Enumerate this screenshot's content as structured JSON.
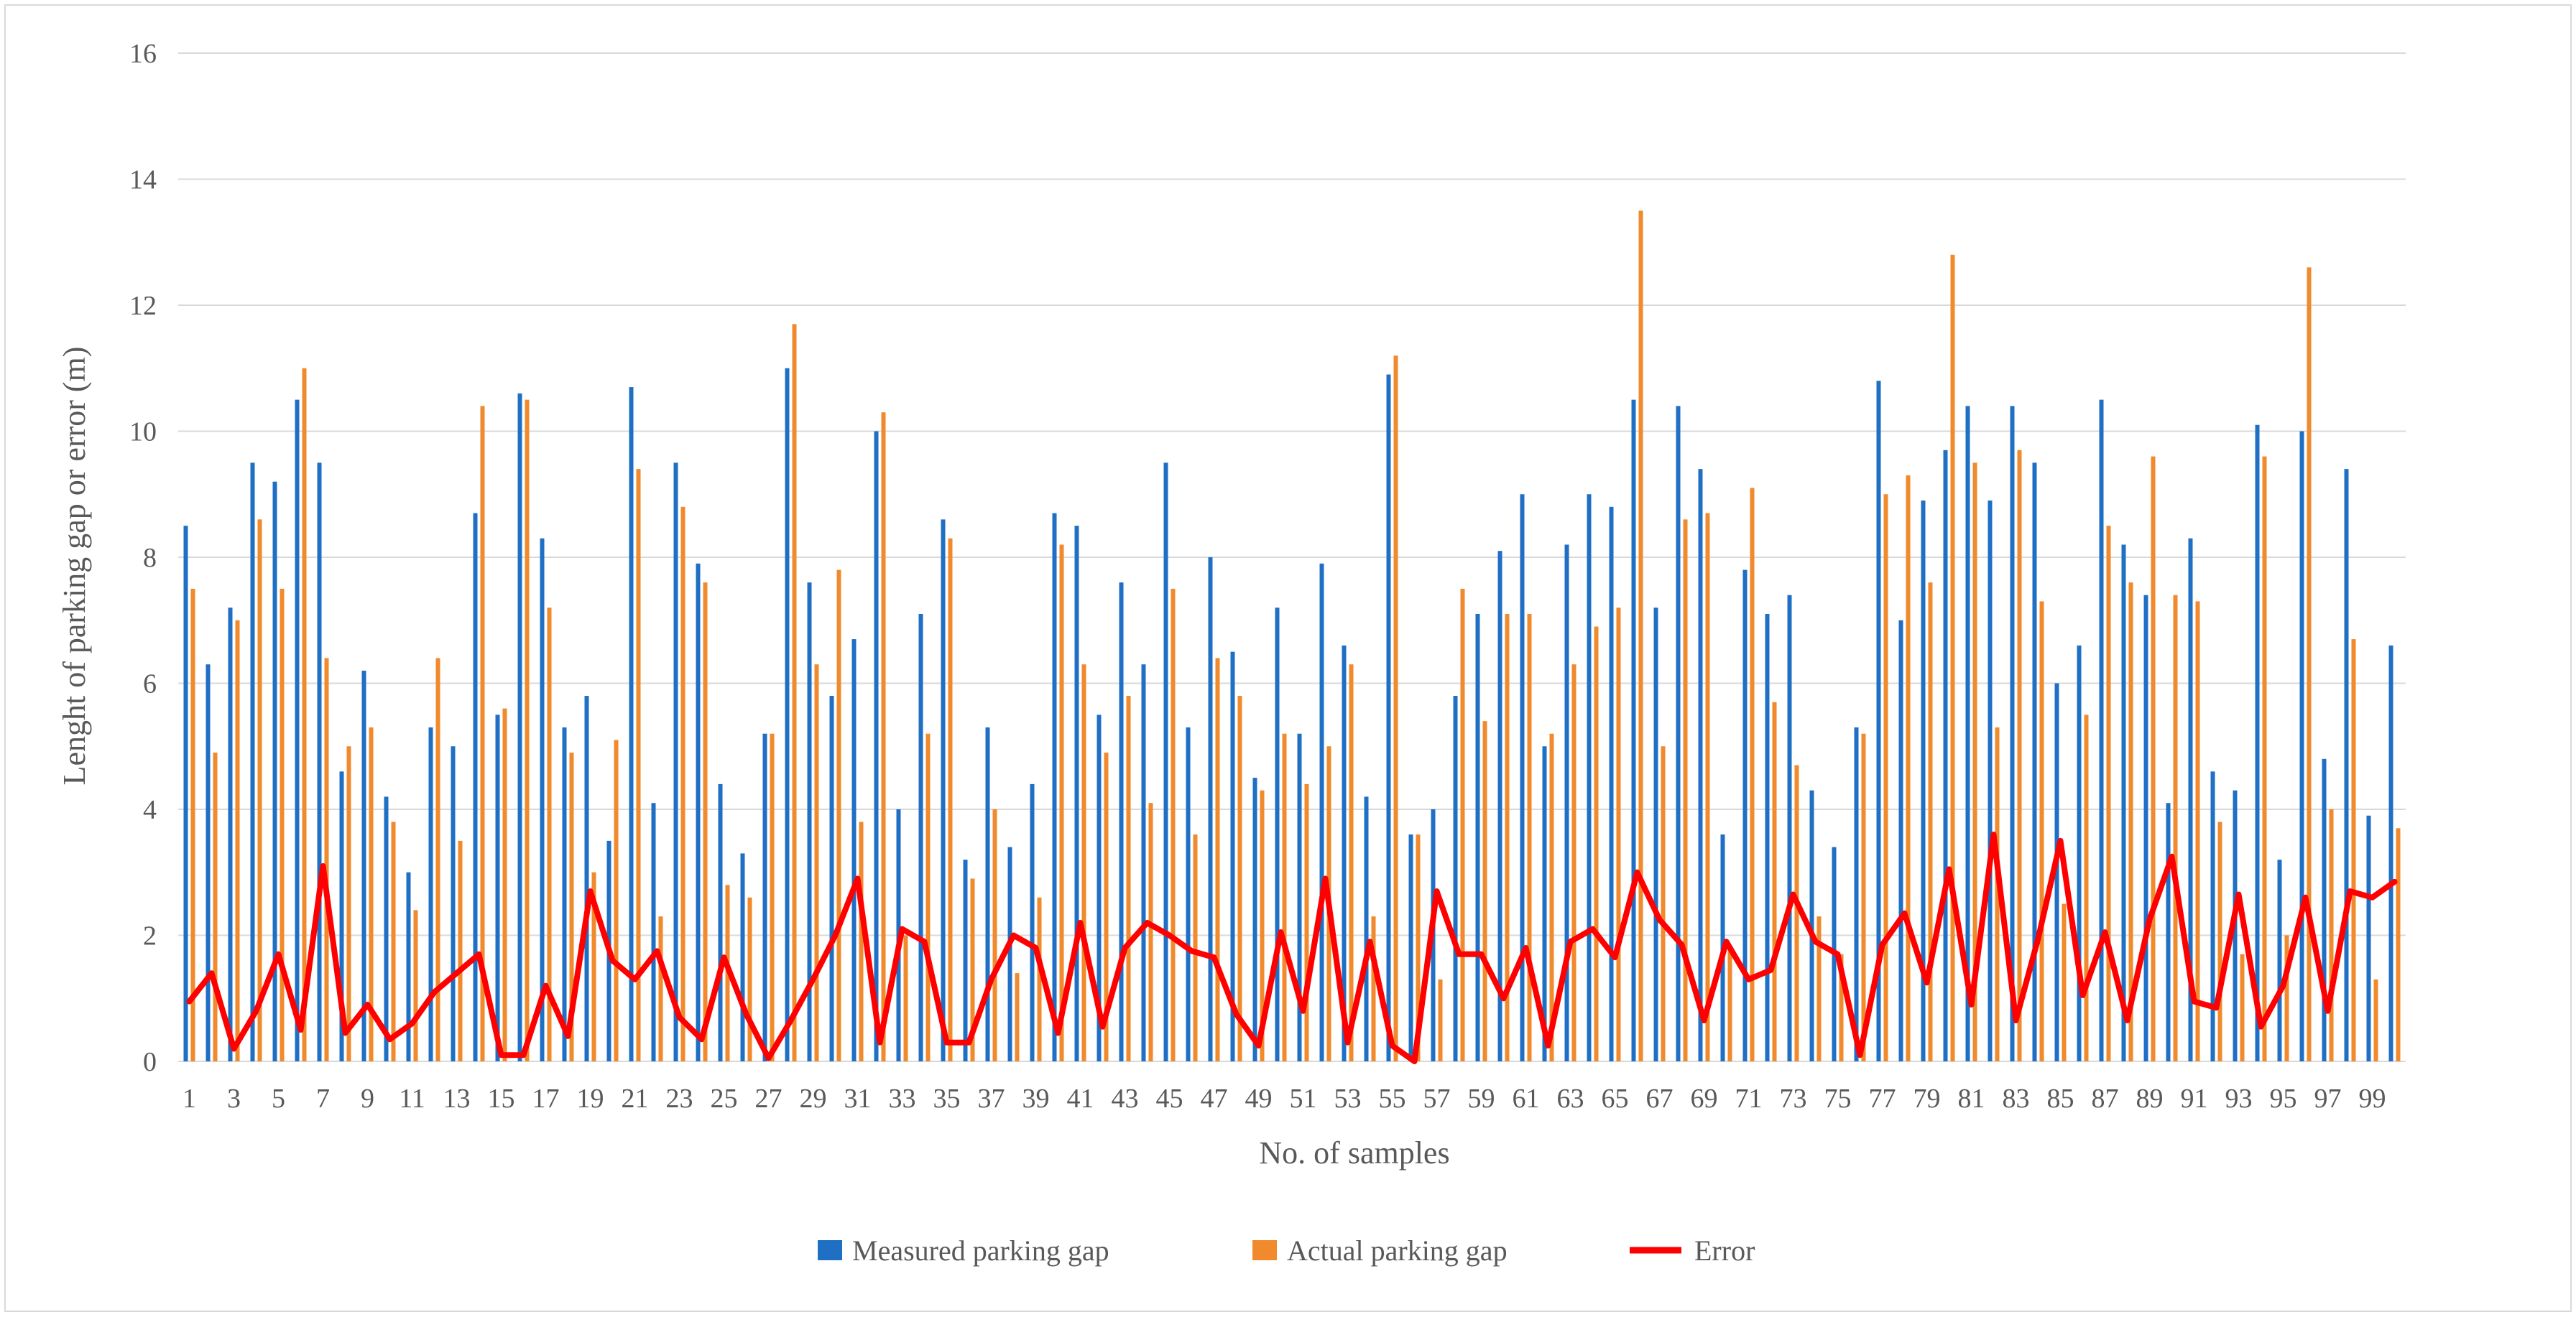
{
  "chart_data": {
    "type": "bar",
    "title": "",
    "xlabel": "No. of samples",
    "ylabel": "Lenght of parking gap or error (m)",
    "ylim": [
      0,
      16
    ],
    "yticks": [
      0,
      2,
      4,
      6,
      8,
      10,
      12,
      14,
      16
    ],
    "grid": true,
    "legend_position": "bottom",
    "categories": [
      1,
      2,
      3,
      4,
      5,
      6,
      7,
      8,
      9,
      10,
      11,
      12,
      13,
      14,
      15,
      16,
      17,
      18,
      19,
      20,
      21,
      22,
      23,
      24,
      25,
      26,
      27,
      28,
      29,
      30,
      31,
      32,
      33,
      34,
      35,
      36,
      37,
      38,
      39,
      40,
      41,
      42,
      43,
      44,
      45,
      46,
      47,
      48,
      49,
      50,
      51,
      52,
      53,
      54,
      55,
      56,
      57,
      58,
      59,
      60,
      61,
      62,
      63,
      64,
      65,
      66,
      67,
      68,
      69,
      70,
      71,
      72,
      73,
      74,
      75,
      76,
      77,
      78,
      79,
      80,
      81,
      82,
      83,
      84,
      85,
      86,
      87,
      88,
      89,
      90,
      91,
      92,
      93,
      94,
      95,
      96,
      97,
      98,
      99,
      100
    ],
    "x_tick_labels": [
      "1",
      "3",
      "5",
      "7",
      "9",
      "11",
      "13",
      "15",
      "17",
      "19",
      "21",
      "23",
      "25",
      "27",
      "29",
      "31",
      "33",
      "35",
      "37",
      "39",
      "41",
      "43",
      "45",
      "47",
      "49",
      "51",
      "53",
      "55",
      "57",
      "59",
      "61",
      "63",
      "65",
      "67",
      "69",
      "71",
      "73",
      "75",
      "77",
      "79",
      "81",
      "83",
      "85",
      "87",
      "89",
      "91",
      "93",
      "95",
      "97",
      "99"
    ],
    "series": [
      {
        "name": "Measured parking gap",
        "type": "bar",
        "color": "#1f6fc5",
        "values": [
          8.5,
          6.3,
          7.2,
          9.5,
          9.2,
          10.5,
          9.5,
          4.6,
          6.2,
          4.2,
          3.0,
          5.3,
          5.0,
          8.7,
          5.5,
          10.6,
          8.3,
          5.3,
          5.8,
          3.5,
          10.7,
          4.1,
          9.5,
          7.9,
          4.4,
          3.3,
          5.2,
          11.0,
          7.6,
          5.8,
          6.7,
          10.0,
          4.0,
          7.1,
          8.6,
          3.2,
          5.3,
          3.4,
          4.4,
          8.7,
          8.5,
          5.5,
          7.6,
          6.3,
          9.5,
          5.3,
          8.0,
          6.5,
          4.5,
          7.2,
          5.2,
          7.9,
          6.6,
          4.2,
          10.9,
          3.6,
          4.0,
          5.8,
          7.1,
          8.1,
          9.0,
          5.0,
          8.2,
          9.0,
          8.8,
          10.5,
          7.2,
          10.4,
          9.4,
          3.6,
          7.8,
          7.1,
          7.4,
          4.3,
          3.4,
          5.3,
          10.8,
          7.0,
          8.9,
          9.7,
          10.4,
          8.9,
          10.4,
          9.5,
          6.0,
          6.6,
          10.5,
          8.2,
          7.4,
          4.1,
          8.3,
          4.6,
          4.3,
          10.1,
          3.2,
          10.0,
          4.8,
          9.4,
          3.9,
          6.6
        ]
      },
      {
        "name": "Actual parking gap",
        "type": "bar",
        "color": "#f08a2d",
        "values": [
          7.5,
          4.9,
          7.0,
          8.6,
          7.5,
          11.0,
          6.4,
          5.0,
          5.3,
          3.8,
          2.4,
          6.4,
          3.5,
          10.4,
          5.6,
          10.5,
          7.2,
          4.9,
          3.0,
          5.1,
          9.4,
          2.3,
          8.8,
          7.6,
          2.8,
          2.6,
          5.2,
          11.7,
          6.3,
          7.8,
          3.8,
          10.3,
          2.0,
          5.2,
          8.3,
          2.9,
          4.0,
          1.4,
          2.6,
          8.2,
          6.3,
          4.9,
          5.8,
          4.1,
          7.5,
          3.6,
          6.4,
          5.8,
          4.3,
          5.2,
          4.4,
          5.0,
          6.3,
          2.3,
          11.2,
          3.6,
          1.3,
          7.5,
          5.4,
          7.1,
          7.1,
          5.2,
          6.3,
          6.9,
          7.2,
          13.5,
          5.0,
          8.6,
          8.7,
          1.8,
          9.1,
          5.7,
          4.7,
          2.3,
          1.7,
          5.2,
          9.0,
          9.3,
          7.6,
          12.8,
          9.5,
          5.3,
          9.7,
          7.3,
          2.5,
          5.5,
          8.5,
          7.6,
          9.6,
          7.4,
          7.3,
          3.8,
          1.7,
          9.6,
          2.0,
          12.6,
          4.0,
          6.7,
          1.3,
          3.7
        ]
      },
      {
        "name": "Error",
        "type": "line",
        "color": "#ff0000",
        "values": [
          0.95,
          1.4,
          0.2,
          0.8,
          1.7,
          0.5,
          3.1,
          0.45,
          0.9,
          0.35,
          0.6,
          1.1,
          1.4,
          1.7,
          0.1,
          0.1,
          1.2,
          0.4,
          2.7,
          1.6,
          1.3,
          1.75,
          0.7,
          0.35,
          1.65,
          0.75,
          0.05,
          0.65,
          1.3,
          2.0,
          2.9,
          0.3,
          2.1,
          1.9,
          0.3,
          0.3,
          1.3,
          2.0,
          1.8,
          0.45,
          2.2,
          0.55,
          1.8,
          2.2,
          2.0,
          1.75,
          1.65,
          0.75,
          0.25,
          2.05,
          0.8,
          2.9,
          0.3,
          1.9,
          0.25,
          0.0,
          2.7,
          1.7,
          1.7,
          1.0,
          1.8,
          0.25,
          1.9,
          2.1,
          1.65,
          3.0,
          2.25,
          1.85,
          0.65,
          1.9,
          1.3,
          1.45,
          2.65,
          1.9,
          1.7,
          0.1,
          1.85,
          2.35,
          1.25,
          3.05,
          0.9,
          3.6,
          0.65,
          1.95,
          3.5,
          1.05,
          2.05,
          0.65,
          2.25,
          3.25,
          0.95,
          0.85,
          2.65,
          0.55,
          1.2,
          2.6,
          0.8,
          2.7,
          2.6,
          2.85
        ]
      }
    ]
  }
}
